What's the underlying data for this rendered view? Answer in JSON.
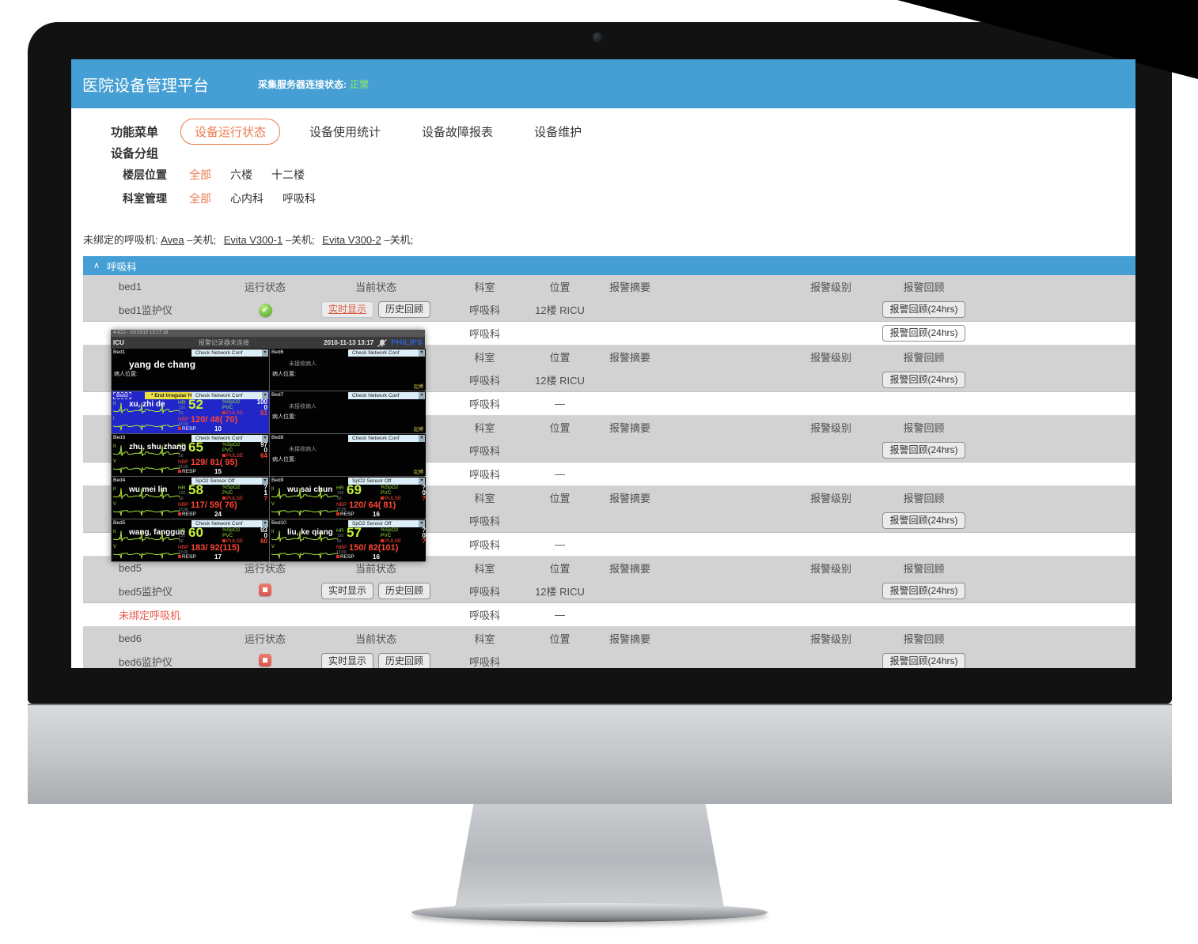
{
  "header": {
    "title": "医院设备管理平台",
    "server_label": "采集服务器连接状态:",
    "server_value": "正常",
    "bar_color": "#459fd4",
    "value_color": "#7fd87f"
  },
  "nav": {
    "menu": "功能菜单",
    "tabs": [
      "设备运行状态",
      "设备使用统计",
      "设备故障报表",
      "设备维护"
    ],
    "active_tab": "设备运行状态",
    "accent_color": "#ed7a4d"
  },
  "grouping": {
    "title": "设备分组",
    "rows": [
      {
        "label": "楼层位置",
        "selected": "全部",
        "options": [
          "全部",
          "六楼",
          "十二楼"
        ]
      },
      {
        "label": "科室管理",
        "selected": "全部",
        "options": [
          "全部",
          "心内科",
          "呼吸科"
        ]
      }
    ]
  },
  "unbound": {
    "prefix": "未绑定的呼吸机:",
    "machines": [
      {
        "name": "Avea",
        "state": "–关机;"
      },
      {
        "name": "Evita V300-1",
        "state": "–关机;"
      },
      {
        "name": "Evita V300-2",
        "state": "–关机;"
      }
    ]
  },
  "section": {
    "collapse": "∧",
    "title": "呼吸科"
  },
  "table": {
    "headers": {
      "run": "运行状态",
      "current": "当前状态",
      "dept": "科室",
      "loc": "位置",
      "summary": "报警摘要",
      "level": "报警级别",
      "review": "报警回顾"
    },
    "buttons": {
      "live": "实时显示",
      "history": "历史回顾",
      "review24": "报警回顾(24hrs)"
    },
    "blocks": [
      {
        "bed": "bed1",
        "covered": false,
        "device": {
          "name": "bed1监护仪",
          "icon": "check",
          "live_active": true,
          "dept": "呼吸科",
          "loc": "12楼 RICU",
          "review": true
        },
        "vent": {
          "name": "",
          "red": false,
          "dept": "呼吸科",
          "loc": "",
          "review": true
        }
      },
      {
        "bed": "",
        "covered": true,
        "device": {
          "name": "",
          "icon": "",
          "live_active": false,
          "dept": "呼吸科",
          "loc": "12楼 RICU",
          "review": true
        },
        "vent": {
          "name": "",
          "red": false,
          "dept": "呼吸科",
          "loc": "—",
          "review": false
        }
      },
      {
        "bed": "",
        "covered": true,
        "device": {
          "name": "",
          "icon": "",
          "live_active": false,
          "dept": "呼吸科",
          "loc": "",
          "review": true
        },
        "vent": {
          "name": "",
          "red": false,
          "dept": "呼吸科",
          "loc": "—",
          "review": false
        }
      },
      {
        "bed": "",
        "covered": true,
        "device": {
          "name": "",
          "icon": "",
          "live_active": false,
          "dept": "呼吸科",
          "loc": "",
          "review": true
        },
        "vent": {
          "name": "",
          "red": false,
          "dept": "呼吸科",
          "loc": "—",
          "review": false
        }
      },
      {
        "bed": "bed5",
        "covered": false,
        "device": {
          "name": "bed5监护仪",
          "icon": "stop",
          "live_active": false,
          "dept": "呼吸科",
          "loc": "12楼 RICU",
          "review": true
        },
        "vent": {
          "name": "未绑定呼吸机",
          "red": true,
          "dept": "呼吸科",
          "loc": "—",
          "review": false
        }
      },
      {
        "bed": "bed6",
        "covered": false,
        "device": {
          "name": "bed6监护仪",
          "icon": "stop",
          "live_active": false,
          "dept": "呼吸科",
          "loc": "",
          "review": true
        },
        "vent": null
      }
    ]
  },
  "monitor": {
    "titlebar": "4-ICU - 10/13/10 13:17:18",
    "top": {
      "unit": "ICU",
      "message": "报警记录器未连接",
      "datetime": "2010-11-13 13:17",
      "brand": "PHILIPS"
    },
    "labels": {
      "hr": "HR",
      "hr_hi": "120",
      "hr_lo": "50",
      "spo2": "%SpO2",
      "pvc": "PVC",
      "pulse": "PULSE",
      "nbp": "NBP",
      "nbp_time": "13:00",
      "resp": "RESP",
      "no_patient": "未接收病人",
      "patient_loc": "病人位置:",
      "corner": "起搏",
      "dropdown_arrow": "▾"
    },
    "beds": [
      {
        "id": "Bed1",
        "type": "named",
        "dropdown": "Check Network Conf",
        "patient": "yang de chang"
      },
      {
        "id": "Bed2",
        "type": "vitals",
        "blue": true,
        "alarm": "* End Irregular HR",
        "dropdown": "Check Network Conf",
        "patient": "xu, zhi de",
        "leads": [
          "II",
          "I"
        ],
        "hr": "52",
        "spo2": "100",
        "pvc": "0",
        "pulse": "51",
        "nbp": "120/ 48( 70)",
        "resp": "10"
      },
      {
        "id": "Bed3",
        "type": "vitals",
        "dropdown": "Check Network Conf",
        "patient": "zhu, shu zhang",
        "leads": [
          "II",
          "V"
        ],
        "hr": "65",
        "spo2": "97",
        "pvc": "0",
        "pulse": "64",
        "nbp": "129/ 81( 95)",
        "resp": "15"
      },
      {
        "id": "Bed4",
        "type": "vitals",
        "dropdown": "SpO2  Sensor Off",
        "patient": "wu mei lin",
        "leads": [
          "II",
          "V"
        ],
        "hr": "58",
        "spo2": "?",
        "pvc": "1",
        "pulse": "?",
        "nbp": "117/ 59( 76)",
        "resp": "24"
      },
      {
        "id": "Bed5",
        "type": "vitals",
        "dropdown": "Check Network Conf",
        "patient": "wang, fangguo",
        "leads": [
          "II",
          "V"
        ],
        "hr": "60",
        "spo2": "93",
        "pvc": "0",
        "pulse": "60",
        "nbp": "183/ 92(115)",
        "resp": "17"
      },
      {
        "id": "Bed6",
        "type": "empty",
        "dropdown": "Check Network Conf"
      },
      {
        "id": "Bed7",
        "type": "empty",
        "dropdown": "Check Network Conf"
      },
      {
        "id": "Bed8",
        "type": "empty",
        "dropdown": "Check Network Conf"
      },
      {
        "id": "Bed9",
        "type": "vitals",
        "dropdown": "SpO2  Sensor Off",
        "patient": "wu sai chun",
        "leads": [
          "II",
          "V"
        ],
        "hr": "69",
        "spo2": "?",
        "pvc": "0",
        "pulse": "?",
        "nbp": "120/ 64( 81)",
        "resp": "16"
      },
      {
        "id": "Bed10",
        "type": "vitals",
        "dropdown": "SpO2  Sensor Off",
        "patient": "liu, ke qiang",
        "leads": [
          "II",
          "V"
        ],
        "hr": "57",
        "spo2": "?",
        "pvc": "0",
        "pulse": "?",
        "nbp": "150/ 82(101)",
        "resp": "16"
      }
    ]
  }
}
